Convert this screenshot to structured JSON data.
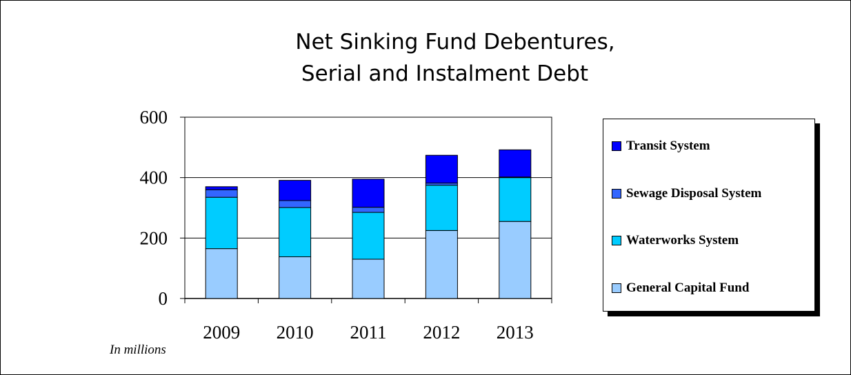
{
  "title_line1": "Net Sinking Fund Debentures,",
  "title_line2": "Serial and Instalment Debt",
  "unit_note": "In millions",
  "colors": {
    "general_capital": "#99ccff",
    "waterworks": "#00ccff",
    "sewage": "#3366ff",
    "transit": "#0000ff"
  },
  "legend": [
    {
      "label": "Transit System",
      "color": "#0000ff"
    },
    {
      "label": "Sewage Disposal System",
      "color": "#3366ff"
    },
    {
      "label": "Waterworks System",
      "color": "#00ccff"
    },
    {
      "label": "General Capital Fund",
      "color": "#99ccff"
    }
  ],
  "chart_data": {
    "type": "bar",
    "stacked": true,
    "categories": [
      "2009",
      "2010",
      "2011",
      "2012",
      "2013"
    ],
    "series": [
      {
        "name": "General Capital Fund",
        "values": [
          165,
          138,
          130,
          225,
          255
        ],
        "color": "#99ccff"
      },
      {
        "name": "Waterworks System",
        "values": [
          170,
          163,
          155,
          150,
          145
        ],
        "color": "#00ccff"
      },
      {
        "name": "Sewage Disposal System",
        "values": [
          25,
          23,
          17,
          7,
          2
        ],
        "color": "#3366ff"
      },
      {
        "name": "Transit System",
        "values": [
          10,
          67,
          93,
          92,
          90
        ],
        "color": "#0000ff"
      }
    ],
    "ylim": [
      0,
      600
    ],
    "yticks": [
      0,
      200,
      400,
      600
    ],
    "grid": true,
    "legend_position": "right"
  }
}
